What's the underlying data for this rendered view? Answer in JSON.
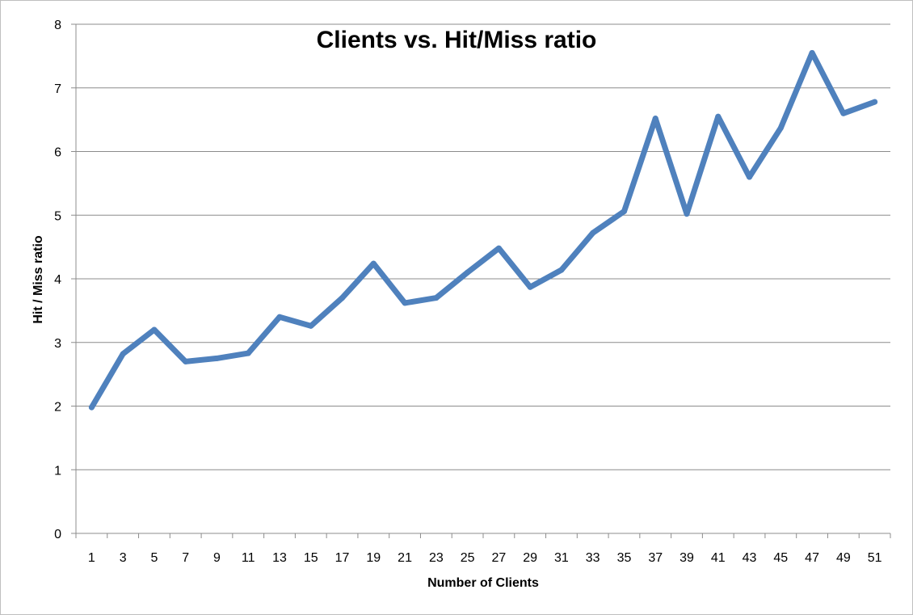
{
  "chart_data": {
    "type": "line",
    "title": "Clients vs. Hit/Miss ratio",
    "xlabel": "Number of Clients",
    "ylabel": "Hit / Miss ratio",
    "x": [
      1,
      3,
      5,
      7,
      9,
      11,
      13,
      15,
      17,
      19,
      21,
      23,
      25,
      27,
      29,
      31,
      33,
      35,
      37,
      39,
      41,
      43,
      45,
      47,
      49,
      51
    ],
    "series": [
      {
        "color": "#4F81BD",
        "values": [
          1.98,
          2.82,
          3.2,
          2.7,
          2.75,
          2.83,
          3.4,
          3.26,
          3.7,
          4.24,
          3.62,
          3.7,
          4.1,
          4.48,
          3.87,
          4.14,
          4.72,
          5.06,
          6.52,
          5.02,
          6.55,
          5.6,
          6.37,
          7.55,
          6.6,
          6.78
        ]
      }
    ],
    "ylim": [
      0,
      8
    ],
    "yticks": [
      0,
      1,
      2,
      3,
      4,
      5,
      6,
      7,
      8
    ],
    "grid": "horizontal",
    "legend": "none",
    "gridColor": "#8c8c8c",
    "axisColor": "#8c8c8c"
  }
}
